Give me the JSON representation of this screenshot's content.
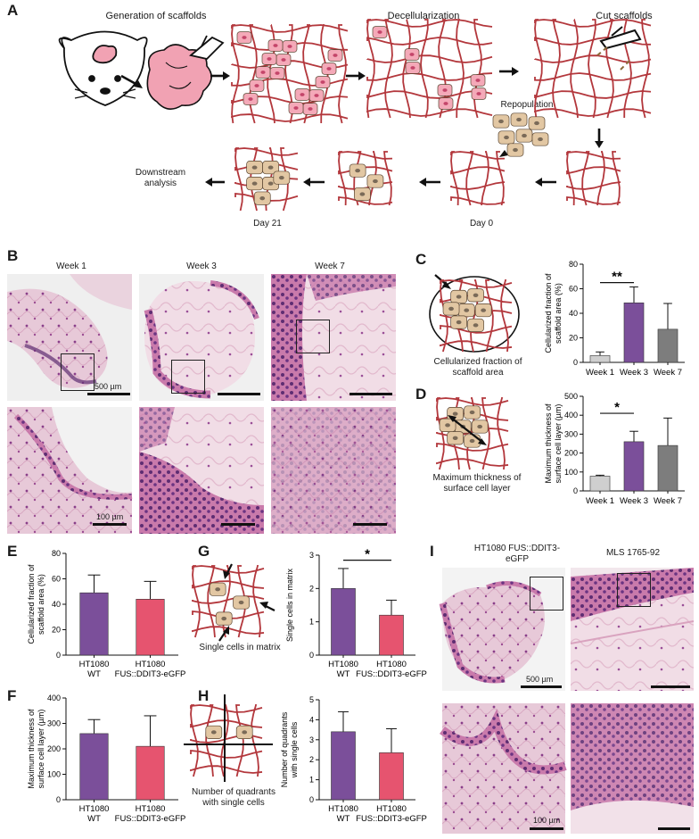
{
  "panel_a": {
    "label": "A",
    "step_generation": "Generation of scaffolds",
    "step_decell": "Decellularization",
    "step_cut": "Cut scaffolds",
    "step_repop": "Repopulation",
    "day0": "Day 0",
    "day21": "Day 21",
    "downstream": "Downstream analysis"
  },
  "panel_b": {
    "label": "B",
    "week1": "Week 1",
    "week3": "Week 3",
    "week7": "Week 7",
    "scale_large": "500 µm",
    "scale_small": "100 µm"
  },
  "panel_c": {
    "label": "C",
    "caption": "Cellularized fraction of scaffold area"
  },
  "panel_d": {
    "label": "D",
    "caption": "Maximum thickness of surface cell layer"
  },
  "panel_e": {
    "label": "E"
  },
  "panel_f": {
    "label": "F"
  },
  "panel_g": {
    "label": "G",
    "caption": "Single cells in matrix"
  },
  "panel_h": {
    "label": "H",
    "caption": "Number of quadrants with single cells"
  },
  "panel_i": {
    "label": "I",
    "col1": "HT1080 FUS::DDIT3-eGFP",
    "col2": "MLS 1765-92",
    "scale_large": "500 µm",
    "scale_small": "100 µm"
  },
  "colors": {
    "purple": "#7b4f9a",
    "pink": "#e6546f",
    "gray": "#7d7d7d",
    "light_gray": "#cfcfcf",
    "fiber": "#b3373c"
  },
  "chart_data": [
    {
      "id": "C",
      "type": "bar",
      "ylabel": "Cellularized fraction of scaffold area (%)",
      "categories": [
        "Week 1",
        "Week 3",
        "Week 7"
      ],
      "values": [
        5.5,
        48.5,
        27
      ],
      "errors": [
        3,
        13,
        21
      ],
      "ylim": [
        0,
        80
      ],
      "yticks": [
        0,
        20,
        40,
        60,
        80
      ],
      "colors": [
        "#cfcfcf",
        "#7b4f9a",
        "#7d7d7d"
      ],
      "significance": [
        {
          "from": 0,
          "to": 1,
          "label": "**",
          "y": 65
        }
      ]
    },
    {
      "id": "D",
      "type": "bar",
      "ylabel": "Maximum thickness of surface cell layer (µm)",
      "categories": [
        "Week 1",
        "Week 3",
        "Week 7"
      ],
      "values": [
        78,
        260,
        240
      ],
      "errors": [
        5,
        55,
        145
      ],
      "ylim": [
        0,
        500
      ],
      "yticks": [
        0,
        100,
        200,
        300,
        400,
        500
      ],
      "colors": [
        "#cfcfcf",
        "#7b4f9a",
        "#7d7d7d"
      ],
      "significance": [
        {
          "from": 0,
          "to": 1,
          "label": "*",
          "y": 410
        }
      ]
    },
    {
      "id": "E",
      "type": "bar",
      "ylabel": "Cellularized fraction of scaffold area (%)",
      "categories": [
        "HT1080 WT",
        "HT1080 FUS::DDIT3-eGFP"
      ],
      "values": [
        49,
        44
      ],
      "errors": [
        14,
        14
      ],
      "ylim": [
        0,
        80
      ],
      "yticks": [
        0,
        20,
        40,
        60,
        80
      ],
      "colors": [
        "#7b4f9a",
        "#e6546f"
      ],
      "significance": []
    },
    {
      "id": "F",
      "type": "bar",
      "ylabel": "Maximum thickness of surface cell layer (µm)",
      "categories": [
        "HT1080 WT",
        "HT1080 FUS::DDIT3-eGFP"
      ],
      "values": [
        260,
        210
      ],
      "errors": [
        55,
        120
      ],
      "ylim": [
        0,
        400
      ],
      "yticks": [
        0,
        100,
        200,
        300,
        400
      ],
      "colors": [
        "#7b4f9a",
        "#e6546f"
      ],
      "significance": []
    },
    {
      "id": "G",
      "type": "bar",
      "ylabel": "Single cells in matrix",
      "categories": [
        "HT1080 WT",
        "HT1080 FUS::DDIT3-eGFP"
      ],
      "values": [
        2.0,
        1.2
      ],
      "errors": [
        0.6,
        0.45
      ],
      "ylim": [
        0,
        3
      ],
      "yticks": [
        0,
        1,
        2,
        3
      ],
      "colors": [
        "#7b4f9a",
        "#e6546f"
      ],
      "significance": [
        {
          "from": 0,
          "to": 1,
          "label": "*",
          "y": 2.85
        }
      ]
    },
    {
      "id": "H",
      "type": "bar",
      "ylabel": "Number of quadrants with single cells",
      "categories": [
        "HT1080 WT",
        "HT1080 FUS::DDIT3-eGFP"
      ],
      "values": [
        3.4,
        2.35
      ],
      "errors": [
        1.0,
        1.2
      ],
      "ylim": [
        0,
        5
      ],
      "yticks": [
        0,
        1,
        2,
        3,
        4,
        5
      ],
      "colors": [
        "#7b4f9a",
        "#e6546f"
      ],
      "significance": []
    }
  ]
}
